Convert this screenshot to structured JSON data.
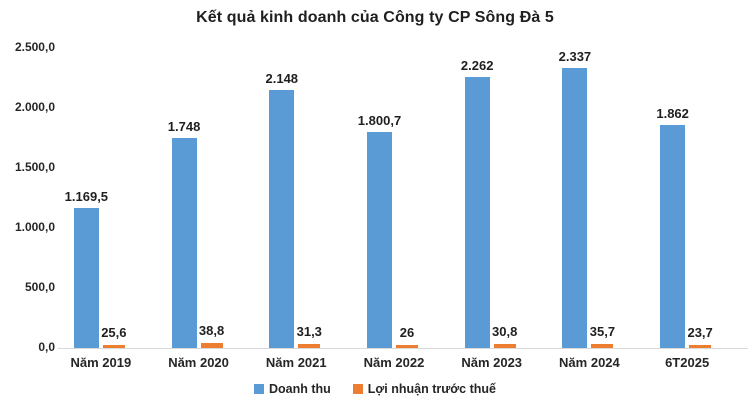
{
  "chart_data": {
    "type": "bar",
    "title": "Kết quả kinh doanh của Công ty CP Sông Đà 5",
    "categories": [
      "Năm 2019",
      "Năm 2020",
      "Năm 2021",
      "Năm 2022",
      "Năm 2023",
      "Năm 2024",
      "6T2025"
    ],
    "series": [
      {
        "name": "Doanh thu",
        "color": "#5B9BD5",
        "values": [
          1169.5,
          1748,
          2148,
          1800.7,
          2262,
          2337,
          1862
        ],
        "value_labels": [
          "1.169,5",
          "1.748",
          "2.148",
          "1.800,7",
          "2.262",
          "2.337",
          "1.862"
        ]
      },
      {
        "name": "Lợi nhuận trước thuế",
        "color": "#ED7D31",
        "values": [
          25.6,
          38.8,
          31.3,
          26,
          30.8,
          35.7,
          23.7
        ],
        "value_labels": [
          "25,6",
          "38,8",
          "31,3",
          "26",
          "30,8",
          "35,7",
          "23,7"
        ]
      }
    ],
    "ylim": [
      0,
      2500
    ],
    "ytick_interval": 500,
    "ytick_labels": [
      "0,0",
      "500,0",
      "1.000,0",
      "1.500,0",
      "2.000,0",
      "2.500,0"
    ],
    "grid": false,
    "legend_position": "bottom",
    "axis_line_color": "#d9d9d9",
    "text_color": "#1f1f1f"
  }
}
